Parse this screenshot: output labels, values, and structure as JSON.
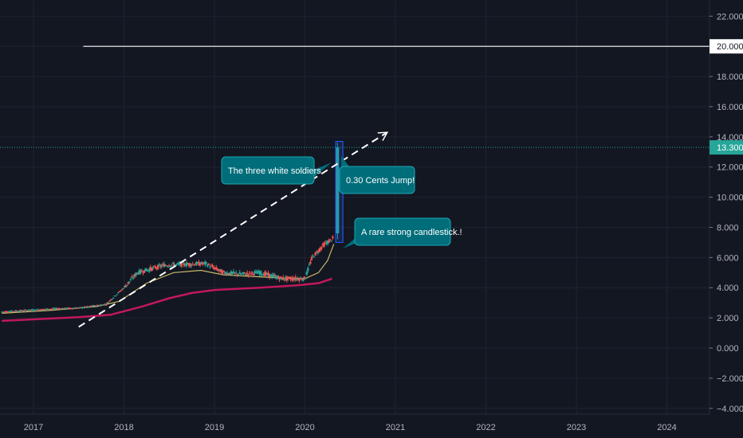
{
  "chart_data": {
    "type": "candlestick",
    "x_ticks": [
      "2017",
      "2018",
      "2019",
      "2020",
      "2021",
      "2022",
      "2023",
      "2024"
    ],
    "y_ticks": [
      "22.000",
      "20.000",
      "18.000",
      "16.000",
      "14.000",
      "12.000",
      "10.000",
      "8.000",
      "6.000",
      "4.000",
      "2.000",
      "0.000",
      "−2.000",
      "−4.000"
    ],
    "ylim": [
      -4,
      22
    ],
    "xlim": [
      2016.65,
      2024.45
    ],
    "current_price": {
      "value": 13.3,
      "label": "13.300",
      "color": "#26a69a"
    },
    "resistance_level": {
      "value": 20.0,
      "label": "20.000",
      "x_start": 2017.55
    },
    "trendline": {
      "from": [
        2017.5,
        1.4
      ],
      "to": [
        2020.91,
        14.3
      ]
    },
    "moving_averages": [
      {
        "color": "#c2185b",
        "points": [
          [
            2016.65,
            1.8
          ],
          [
            2017.0,
            1.9
          ],
          [
            2017.5,
            2.05
          ],
          [
            2017.85,
            2.2
          ],
          [
            2018.2,
            2.75
          ],
          [
            2018.5,
            3.3
          ],
          [
            2018.75,
            3.65
          ],
          [
            2019.0,
            3.85
          ],
          [
            2019.5,
            4.0
          ],
          [
            2019.9,
            4.15
          ],
          [
            2020.15,
            4.3
          ],
          [
            2020.3,
            4.6
          ]
        ]
      },
      {
        "color": "#c8b96b",
        "points": [
          [
            2016.65,
            2.3
          ],
          [
            2017.2,
            2.5
          ],
          [
            2017.7,
            2.75
          ],
          [
            2017.95,
            3.1
          ],
          [
            2018.25,
            4.3
          ],
          [
            2018.55,
            5.0
          ],
          [
            2018.85,
            5.15
          ],
          [
            2019.1,
            4.85
          ],
          [
            2019.4,
            4.75
          ],
          [
            2019.7,
            4.65
          ],
          [
            2020.0,
            4.6
          ],
          [
            2020.15,
            5.0
          ],
          [
            2020.25,
            5.8
          ],
          [
            2020.32,
            6.9
          ]
        ]
      }
    ],
    "annotations": [
      {
        "text": "The three white soldiers."
      },
      {
        "text": "0.30 Cents Jump!"
      },
      {
        "text": "A rare strong candlestick.!"
      }
    ]
  }
}
